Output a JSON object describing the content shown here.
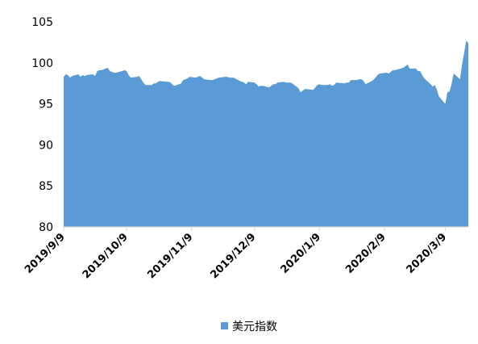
{
  "chart_data": {
    "type": "area",
    "title": "",
    "xlabel": "",
    "ylabel": "",
    "ylim": [
      80,
      105
    ],
    "yticks": [
      80,
      85,
      90,
      95,
      100,
      105
    ],
    "x_ticks": [
      "2019/9/9",
      "2019/10/9",
      "2019/11/9",
      "2019/12/9",
      "2020/1/9",
      "2020/2/9",
      "2020/3/9"
    ],
    "x_start": "2019/9/9",
    "x_end": "2020/3/20",
    "grid": false,
    "legend_position": "bottom",
    "series": [
      {
        "name": "美元指数",
        "color": "#5B9BD5",
        "points": [
          [
            "2019/9/9",
            98.3
          ],
          [
            "2019/9/10",
            98.6
          ],
          [
            "2019/9/11",
            98.5
          ],
          [
            "2019/9/12",
            98.2
          ],
          [
            "2019/9/13",
            98.4
          ],
          [
            "2019/9/16",
            98.6
          ],
          [
            "2019/9/17",
            98.3
          ],
          [
            "2019/9/18",
            98.5
          ],
          [
            "2019/9/19",
            98.4
          ],
          [
            "2019/9/20",
            98.5
          ],
          [
            "2019/9/23",
            98.6
          ],
          [
            "2019/9/24",
            98.4
          ],
          [
            "2019/9/25",
            99.0
          ],
          [
            "2019/9/26",
            99.1
          ],
          [
            "2019/9/27",
            99.1
          ],
          [
            "2019/9/30",
            99.4
          ],
          [
            "2019/10/1",
            99.0
          ],
          [
            "2019/10/2",
            98.9
          ],
          [
            "2019/10/3",
            98.8
          ],
          [
            "2019/10/4",
            98.8
          ],
          [
            "2019/10/7",
            99.0
          ],
          [
            "2019/10/8",
            99.1
          ],
          [
            "2019/10/9",
            99.0
          ],
          [
            "2019/10/10",
            98.5
          ],
          [
            "2019/10/11",
            98.2
          ],
          [
            "2019/10/14",
            98.3
          ],
          [
            "2019/10/15",
            98.4
          ],
          [
            "2019/10/16",
            98.0
          ],
          [
            "2019/10/17",
            97.6
          ],
          [
            "2019/10/18",
            97.3
          ],
          [
            "2019/10/21",
            97.3
          ],
          [
            "2019/10/22",
            97.5
          ],
          [
            "2019/10/23",
            97.5
          ],
          [
            "2019/10/24",
            97.7
          ],
          [
            "2019/10/25",
            97.8
          ],
          [
            "2019/10/28",
            97.7
          ],
          [
            "2019/10/29",
            97.7
          ],
          [
            "2019/10/30",
            97.6
          ],
          [
            "2019/10/31",
            97.3
          ],
          [
            "2019/11/1",
            97.2
          ],
          [
            "2019/11/4",
            97.5
          ],
          [
            "2019/11/5",
            97.9
          ],
          [
            "2019/11/6",
            98.0
          ],
          [
            "2019/11/7",
            98.1
          ],
          [
            "2019/11/8",
            98.3
          ],
          [
            "2019/11/11",
            98.2
          ],
          [
            "2019/11/12",
            98.3
          ],
          [
            "2019/11/13",
            98.4
          ],
          [
            "2019/11/14",
            98.2
          ],
          [
            "2019/11/15",
            98.0
          ],
          [
            "2019/11/18",
            97.9
          ],
          [
            "2019/11/19",
            97.9
          ],
          [
            "2019/11/20",
            98.0
          ],
          [
            "2019/11/21",
            98.1
          ],
          [
            "2019/11/22",
            98.2
          ],
          [
            "2019/11/25",
            98.3
          ],
          [
            "2019/11/26",
            98.3
          ],
          [
            "2019/11/27",
            98.2
          ],
          [
            "2019/11/29",
            98.2
          ],
          [
            "2019/12/2",
            97.8
          ],
          [
            "2019/12/3",
            97.7
          ],
          [
            "2019/12/4",
            97.6
          ],
          [
            "2019/12/5",
            97.4
          ],
          [
            "2019/12/6",
            97.7
          ],
          [
            "2019/12/9",
            97.6
          ],
          [
            "2019/12/10",
            97.4
          ],
          [
            "2019/12/11",
            97.1
          ],
          [
            "2019/12/12",
            97.2
          ],
          [
            "2019/12/13",
            97.2
          ],
          [
            "2019/12/16",
            97.0
          ],
          [
            "2019/12/17",
            97.2
          ],
          [
            "2019/12/18",
            97.4
          ],
          [
            "2019/12/19",
            97.4
          ],
          [
            "2019/12/20",
            97.6
          ],
          [
            "2019/12/23",
            97.7
          ],
          [
            "2019/12/24",
            97.6
          ],
          [
            "2019/12/26",
            97.6
          ],
          [
            "2019/12/27",
            97.5
          ],
          [
            "2019/12/30",
            96.9
          ],
          [
            "2019/12/31",
            96.4
          ],
          [
            "2020/1/2",
            96.8
          ],
          [
            "2020/1/3",
            96.8
          ],
          [
            "2020/1/6",
            96.7
          ],
          [
            "2020/1/7",
            97.0
          ],
          [
            "2020/1/8",
            97.3
          ],
          [
            "2020/1/9",
            97.4
          ],
          [
            "2020/1/10",
            97.3
          ],
          [
            "2020/1/13",
            97.3
          ],
          [
            "2020/1/14",
            97.4
          ],
          [
            "2020/1/15",
            97.2
          ],
          [
            "2020/1/16",
            97.3
          ],
          [
            "2020/1/17",
            97.6
          ],
          [
            "2020/1/21",
            97.5
          ],
          [
            "2020/1/22",
            97.6
          ],
          [
            "2020/1/23",
            97.6
          ],
          [
            "2020/1/24",
            97.9
          ],
          [
            "2020/1/27",
            97.9
          ],
          [
            "2020/1/28",
            98.0
          ],
          [
            "2020/1/29",
            98.0
          ],
          [
            "2020/1/30",
            97.8
          ],
          [
            "2020/1/31",
            97.4
          ],
          [
            "2020/2/3",
            97.8
          ],
          [
            "2020/2/4",
            98.0
          ],
          [
            "2020/2/5",
            98.3
          ],
          [
            "2020/2/6",
            98.6
          ],
          [
            "2020/2/7",
            98.7
          ],
          [
            "2020/2/10",
            98.8
          ],
          [
            "2020/2/11",
            98.7
          ],
          [
            "2020/2/12",
            98.9
          ],
          [
            "2020/2/13",
            99.1
          ],
          [
            "2020/2/14",
            99.1
          ],
          [
            "2020/2/18",
            99.4
          ],
          [
            "2020/2/19",
            99.6
          ],
          [
            "2020/2/20",
            99.8
          ],
          [
            "2020/2/21",
            99.3
          ],
          [
            "2020/2/24",
            99.3
          ],
          [
            "2020/2/25",
            99.0
          ],
          [
            "2020/2/26",
            99.0
          ],
          [
            "2020/2/27",
            98.5
          ],
          [
            "2020/2/28",
            98.1
          ],
          [
            "2020/3/2",
            97.4
          ],
          [
            "2020/3/3",
            97.1
          ],
          [
            "2020/3/4",
            97.3
          ],
          [
            "2020/3/5",
            96.7
          ],
          [
            "2020/3/6",
            95.9
          ],
          [
            "2020/3/9",
            95.0
          ],
          [
            "2020/3/10",
            96.4
          ],
          [
            "2020/3/11",
            96.5
          ],
          [
            "2020/3/12",
            97.4
          ],
          [
            "2020/3/13",
            98.7
          ],
          [
            "2020/3/16",
            98.0
          ],
          [
            "2020/3/17",
            99.8
          ],
          [
            "2020/3/18",
            101.2
          ],
          [
            "2020/3/19",
            102.7
          ],
          [
            "2020/3/20",
            102.4
          ]
        ]
      }
    ]
  }
}
